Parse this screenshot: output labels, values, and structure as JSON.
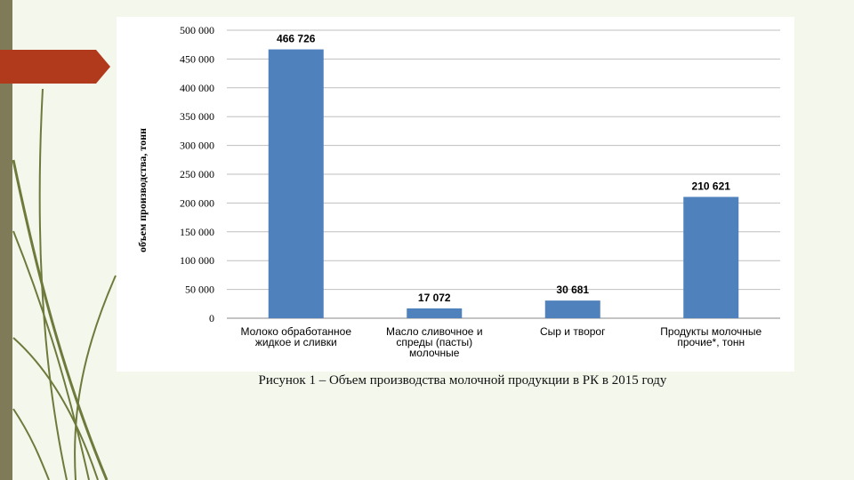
{
  "colors": {
    "background": "#f3f7ec",
    "left_stripe": "#7f7a57",
    "accent_tab": "#b23a1c",
    "bar": "#4f81bd",
    "grid": "#bfbfbf",
    "vine": "#6e7a3c"
  },
  "icons": {
    "accent": "arrow-tab-icon"
  },
  "chart_data": {
    "type": "bar",
    "title": "",
    "ylabel": "объем производства, тонн",
    "xlabel": "",
    "ylim": [
      0,
      500000
    ],
    "yticks": [
      0,
      50000,
      100000,
      150000,
      200000,
      250000,
      300000,
      350000,
      400000,
      450000,
      500000
    ],
    "ytick_labels": [
      "0",
      "50 000",
      "100 000",
      "150 000",
      "200 000",
      "250 000",
      "300 000",
      "350 000",
      "400 000",
      "450 000",
      "500 000"
    ],
    "grid": true,
    "legend": "none",
    "categories": [
      [
        "Молоко обработанное",
        "жидкое и сливки"
      ],
      [
        "Масло сливочное и",
        "спреды (пасты)",
        "молочные"
      ],
      [
        "Сыр и творог"
      ],
      [
        "Продукты молочные",
        "прочие*, тонн"
      ]
    ],
    "values": [
      466726,
      17072,
      30681,
      210621
    ],
    "data_labels": [
      "466 726",
      "17 072",
      "30 681",
      "210 621"
    ]
  },
  "caption": "Рисунок 1 – Объем производства молочной продукции в РК в 2015 году"
}
